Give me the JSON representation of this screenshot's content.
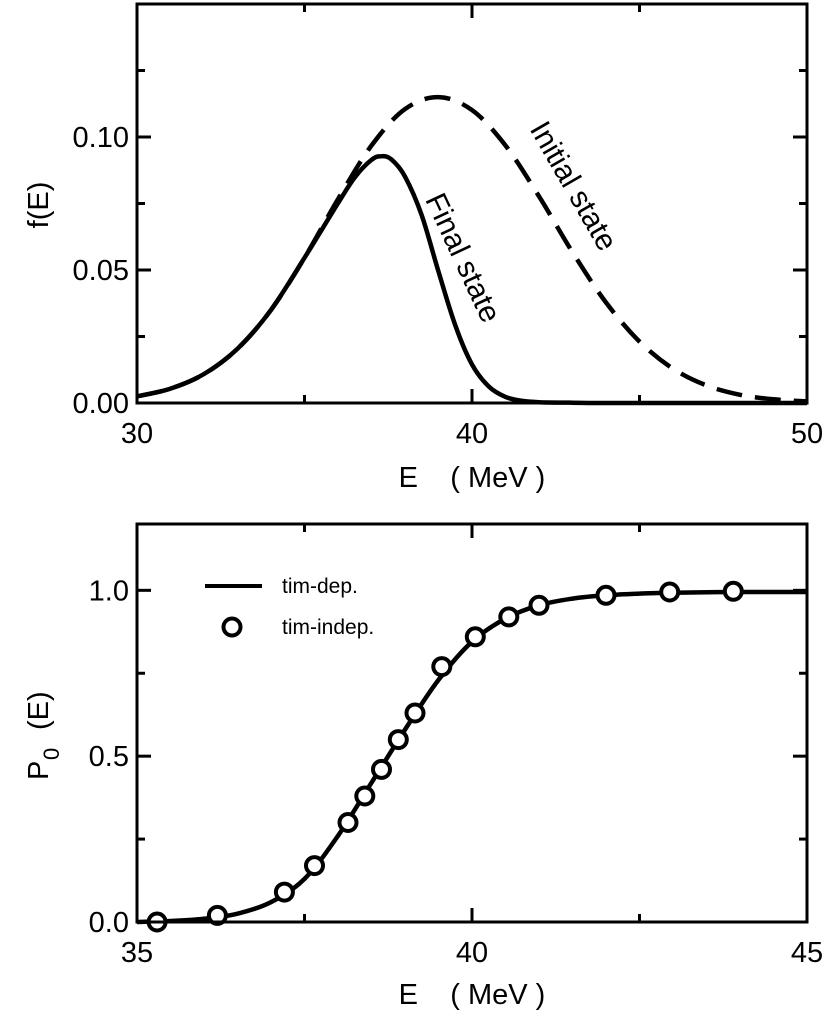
{
  "chart_data": [
    {
      "type": "line",
      "xlabel": "E    ( MeV )",
      "ylabel": "f(E)",
      "xlim": [
        30,
        50
      ],
      "ylim": [
        0,
        0.15
      ],
      "x_ticks": [
        30,
        40,
        50
      ],
      "x_tick_labels": [
        "30",
        "40",
        "50"
      ],
      "y_ticks": [
        0,
        0.05,
        0.1
      ],
      "y_tick_labels": [
        "0.00",
        "0.05",
        "0.10"
      ],
      "series": [
        {
          "name": "Initial state",
          "style": "dashed",
          "x": [
            30,
            31,
            32,
            33,
            34,
            35,
            36,
            37,
            38,
            39,
            40,
            41,
            42,
            43,
            44,
            45,
            46,
            47,
            48,
            49,
            50
          ],
          "y": [
            0.0025,
            0.0054,
            0.0109,
            0.0204,
            0.035,
            0.0546,
            0.0766,
            0.0968,
            0.1105,
            0.115,
            0.1101,
            0.0968,
            0.0777,
            0.0567,
            0.0378,
            0.0231,
            0.0129,
            0.0066,
            0.0031,
            0.0014,
            0.0006
          ]
        },
        {
          "name": "Final state",
          "style": "solid",
          "x": [
            30,
            31,
            32,
            33,
            34,
            35,
            36,
            36.5,
            37,
            37.3,
            37.6,
            38,
            38.5,
            39,
            39.5,
            40,
            40.5,
            41,
            41.5,
            42,
            43,
            44,
            46,
            50
          ],
          "y": [
            0.0025,
            0.0054,
            0.0109,
            0.0204,
            0.035,
            0.0546,
            0.0751,
            0.0848,
            0.0914,
            0.0928,
            0.0915,
            0.0851,
            0.0705,
            0.0494,
            0.0292,
            0.0145,
            0.0062,
            0.0023,
            0.0008,
            0.0003,
            0.0001,
            0.0,
            0.0,
            0.0
          ]
        }
      ],
      "annotations": [
        "Initial state",
        "Final state"
      ]
    },
    {
      "type": "line",
      "xlabel": "E    ( MeV )",
      "ylabel": "P",
      "ylabel_sub": "0",
      "ylabel_suffix": "(E)",
      "xlim": [
        35,
        45
      ],
      "ylim": [
        0,
        1.2
      ],
      "x_ticks": [
        35,
        40,
        45
      ],
      "x_tick_labels": [
        "35",
        "40",
        "45"
      ],
      "y_ticks": [
        0,
        0.5,
        1.0
      ],
      "y_tick_labels": [
        "0.0",
        "0.5",
        "1.0"
      ],
      "legend": {
        "position": "top-left",
        "entries": [
          "tim-dep.",
          "tim-indep."
        ]
      },
      "series": [
        {
          "name": "tim-dep.",
          "style": "solid",
          "x": [
            35.0,
            35.5,
            36.0,
            36.5,
            37.0,
            37.5,
            38.0,
            38.5,
            39.0,
            39.5,
            40.0,
            40.5,
            41.0,
            41.5,
            42.0,
            42.5,
            43.0,
            44.0,
            45.0
          ],
          "y": [
            0.0,
            0.003,
            0.01,
            0.025,
            0.06,
            0.13,
            0.26,
            0.42,
            0.58,
            0.73,
            0.845,
            0.915,
            0.955,
            0.975,
            0.985,
            0.99,
            0.993,
            0.995,
            0.995
          ]
        },
        {
          "name": "tim-indep.",
          "style": "markers",
          "x": [
            35.3,
            36.2,
            37.2,
            37.65,
            38.15,
            38.4,
            38.65,
            38.9,
            39.15,
            39.55,
            40.05,
            40.55,
            41.0,
            42.0,
            42.95,
            43.9
          ],
          "y": [
            0.0,
            0.02,
            0.09,
            0.17,
            0.3,
            0.38,
            0.46,
            0.55,
            0.63,
            0.77,
            0.86,
            0.92,
            0.955,
            0.985,
            0.995,
            0.997
          ]
        }
      ]
    }
  ]
}
